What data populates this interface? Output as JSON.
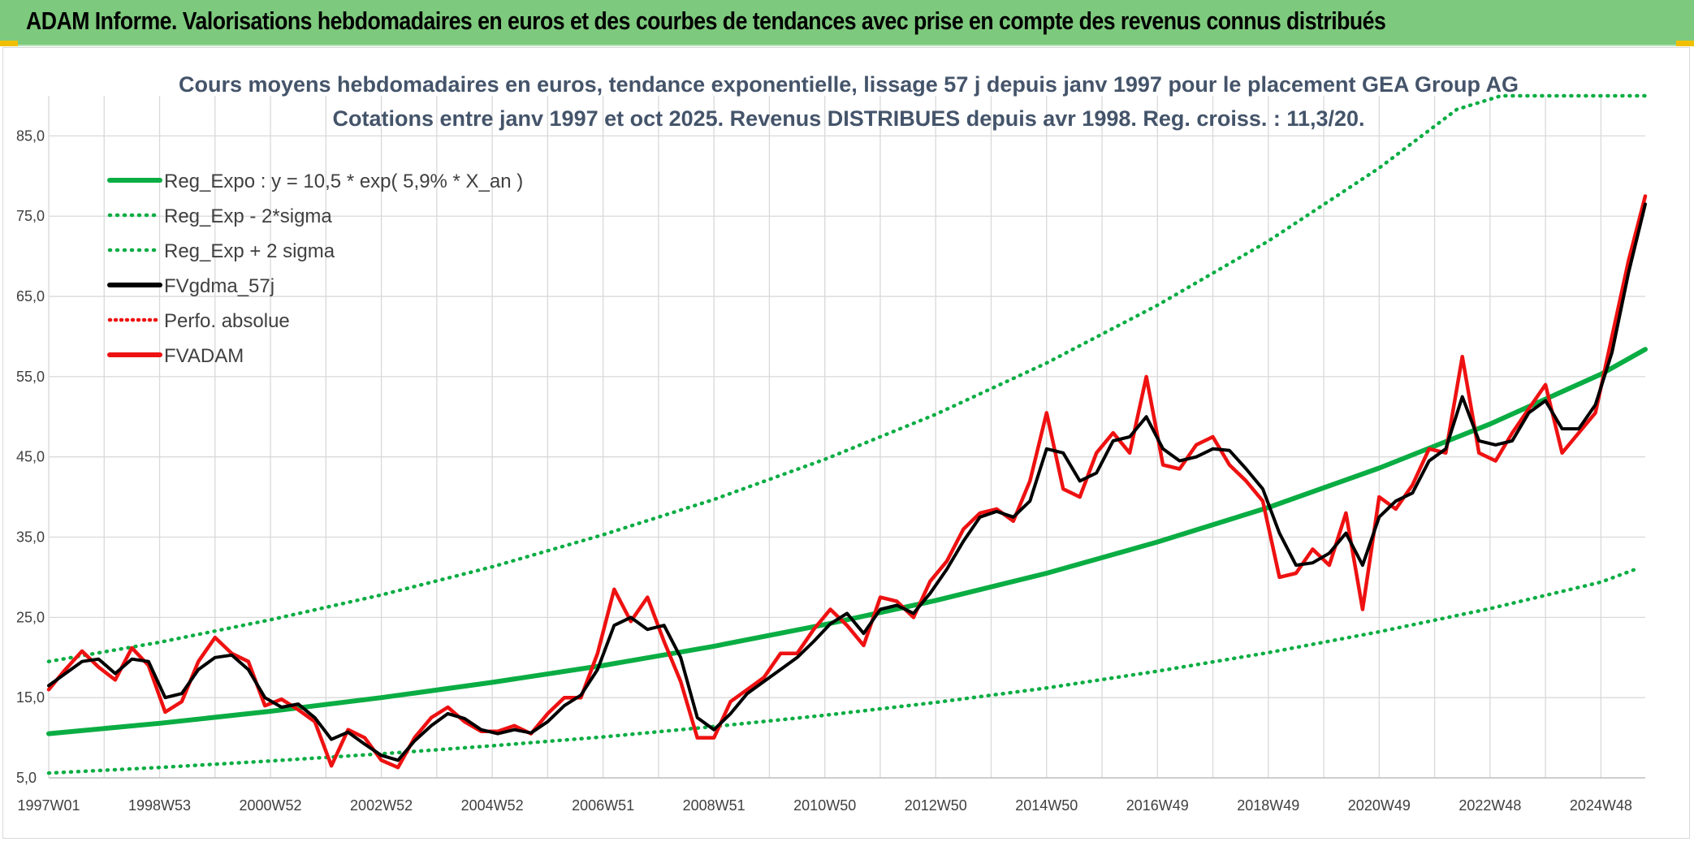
{
  "banner": {
    "title": "ADAM Informe. Valorisations hebdomadaires en euros et des courbes de tendances avec prise en compte des revenus connus distribués"
  },
  "colors": {
    "banner_bg": "#7dc97d",
    "trend": "#0aad43",
    "smooth": "#000000",
    "price": "#ee1111",
    "perf": "#ee1111",
    "grid": "#d9d9d9",
    "title": "#44546a"
  },
  "chart_data": {
    "type": "line",
    "title_lines": [
      "Cours moyens hebdomadaires en euros, tendance exponentielle, lissage 57 j depuis janv 1997 pour le placement GEA Group AG",
      "Cotations entre janv 1997 et oct 2025. Revenus DISTRIBUES depuis avr 1998. Reg. croiss. : 11,3/20."
    ],
    "xlabel": "",
    "ylabel": "",
    "x_unit": "years since 1997W01",
    "xlim": [
      0,
      28.8
    ],
    "ylim": [
      5,
      90
    ],
    "grid": true,
    "legend_position": "top-left",
    "x_ticks": [
      {
        "x": 0,
        "label": "1997W01"
      },
      {
        "x": 2,
        "label": "1998W53"
      },
      {
        "x": 4,
        "label": "2000W52"
      },
      {
        "x": 6,
        "label": "2002W52"
      },
      {
        "x": 8,
        "label": "2004W52"
      },
      {
        "x": 10,
        "label": "2006W51"
      },
      {
        "x": 12,
        "label": "2008W51"
      },
      {
        "x": 14,
        "label": "2010W50"
      },
      {
        "x": 16,
        "label": "2012W50"
      },
      {
        "x": 18,
        "label": "2014W50"
      },
      {
        "x": 20,
        "label": "2016W49"
      },
      {
        "x": 22,
        "label": "2018W49"
      },
      {
        "x": 24,
        "label": "2020W49"
      },
      {
        "x": 26,
        "label": "2022W48"
      },
      {
        "x": 28,
        "label": "2024W48"
      }
    ],
    "y_ticks": [
      {
        "y": 5,
        "label": "5,0"
      },
      {
        "y": 15,
        "label": "15,0"
      },
      {
        "y": 25,
        "label": "25,0"
      },
      {
        "y": 35,
        "label": "35,0"
      },
      {
        "y": 45,
        "label": "45,0"
      },
      {
        "y": 55,
        "label": "55,0"
      },
      {
        "y": 65,
        "label": "65,0"
      },
      {
        "y": 75,
        "label": "75,0"
      },
      {
        "y": 85,
        "label": "85,0"
      }
    ],
    "series": [
      {
        "name": "Reg_Expo : y = 10,5 * exp( 5,9% *  X_an )",
        "style": "trend",
        "x": [
          0,
          2,
          4,
          6,
          8,
          10,
          12,
          14,
          16,
          18,
          20,
          22,
          24,
          26,
          28,
          28.8
        ],
        "y": [
          10.5,
          11.8,
          13.3,
          15.0,
          16.9,
          19.0,
          21.4,
          24.1,
          27.1,
          30.5,
          34.4,
          38.7,
          43.6,
          49.1,
          55.3,
          58.4
        ]
      },
      {
        "name": "Reg_Exp - 2*sigma",
        "style": "band",
        "x": [
          0,
          2,
          4,
          6,
          8,
          10,
          12,
          14,
          16,
          18,
          20,
          22,
          24,
          26,
          28,
          28.7
        ],
        "y": [
          5.6,
          6.3,
          7.1,
          8.0,
          9.0,
          10.1,
          11.4,
          12.8,
          14.4,
          16.2,
          18.3,
          20.6,
          23.2,
          26.1,
          29.4,
          31.2
        ]
      },
      {
        "name": "Reg_Exp + 2 sigma",
        "style": "band",
        "x": [
          0,
          2,
          4,
          6,
          8,
          10,
          12,
          14,
          16,
          18,
          20,
          22,
          24,
          25.4,
          26.2,
          26.8,
          28,
          28.8
        ],
        "y": [
          19.5,
          21.9,
          24.7,
          27.8,
          31.3,
          35.3,
          39.7,
          44.7,
          50.3,
          56.7,
          63.9,
          71.9,
          81.0,
          88.3,
          90,
          90,
          90,
          90
        ]
      },
      {
        "name": "FVgdma_57j",
        "style": "smooth",
        "x": [
          0,
          0.3,
          0.6,
          0.9,
          1.2,
          1.5,
          1.8,
          2.1,
          2.4,
          2.7,
          3.0,
          3.3,
          3.6,
          3.9,
          4.2,
          4.5,
          4.8,
          5.1,
          5.4,
          5.7,
          6.0,
          6.3,
          6.6,
          6.9,
          7.2,
          7.5,
          7.8,
          8.1,
          8.4,
          8.7,
          9.0,
          9.3,
          9.6,
          9.9,
          10.2,
          10.5,
          10.8,
          11.1,
          11.4,
          11.7,
          12.0,
          12.3,
          12.6,
          12.9,
          13.2,
          13.5,
          13.8,
          14.1,
          14.4,
          14.7,
          15.0,
          15.3,
          15.6,
          15.9,
          16.2,
          16.5,
          16.8,
          17.1,
          17.4,
          17.7,
          18.0,
          18.3,
          18.6,
          18.9,
          19.2,
          19.5,
          19.8,
          20.1,
          20.4,
          20.7,
          21.0,
          21.3,
          21.6,
          21.9,
          22.2,
          22.5,
          22.8,
          23.1,
          23.4,
          23.7,
          24.0,
          24.3,
          24.6,
          24.9,
          25.2,
          25.5,
          25.8,
          26.1,
          26.4,
          26.7,
          27.0,
          27.3,
          27.6,
          27.9,
          28.2,
          28.5,
          28.8
        ],
        "y": [
          16.5,
          18.0,
          19.5,
          19.8,
          18.0,
          19.8,
          19.5,
          15.0,
          15.5,
          18.5,
          20.0,
          20.3,
          18.5,
          15.0,
          13.8,
          14.2,
          12.5,
          9.8,
          10.7,
          9.2,
          7.8,
          7.2,
          9.6,
          11.5,
          13.0,
          12.4,
          11.0,
          10.5,
          11.0,
          10.6,
          12.0,
          14.0,
          15.3,
          18.5,
          24.0,
          25.0,
          23.5,
          24.0,
          20.0,
          12.5,
          11.0,
          13.0,
          15.5,
          17.0,
          18.5,
          20.0,
          22.0,
          24.2,
          25.5,
          23.0,
          26.0,
          26.5,
          25.5,
          28.0,
          31.0,
          34.5,
          37.5,
          38.2,
          37.5,
          39.5,
          46.0,
          45.5,
          42.0,
          43.0,
          47.0,
          47.5,
          50.0,
          46.0,
          44.5,
          45.0,
          46.0,
          45.8,
          43.5,
          41.0,
          35.5,
          31.5,
          31.8,
          33.0,
          35.5,
          31.5,
          37.5,
          39.5,
          40.5,
          44.5,
          46.0,
          52.5,
          47.0,
          46.5,
          47.0,
          50.5,
          52.0,
          48.5,
          48.5,
          51.5,
          58.0,
          68.0,
          76.5
        ]
      },
      {
        "name": "Perfo. absolue",
        "style": "perf",
        "x": [],
        "y": []
      },
      {
        "name": "FVADAM",
        "style": "price",
        "x": [
          0,
          0.3,
          0.6,
          0.9,
          1.2,
          1.5,
          1.8,
          2.1,
          2.4,
          2.7,
          3.0,
          3.3,
          3.6,
          3.9,
          4.2,
          4.5,
          4.8,
          5.1,
          5.4,
          5.7,
          6.0,
          6.3,
          6.6,
          6.9,
          7.2,
          7.5,
          7.8,
          8.1,
          8.4,
          8.7,
          9.0,
          9.3,
          9.6,
          9.9,
          10.2,
          10.5,
          10.8,
          11.1,
          11.4,
          11.7,
          12.0,
          12.3,
          12.6,
          12.9,
          13.2,
          13.5,
          13.8,
          14.1,
          14.4,
          14.7,
          15.0,
          15.3,
          15.6,
          15.9,
          16.2,
          16.5,
          16.8,
          17.1,
          17.4,
          17.7,
          18.0,
          18.3,
          18.6,
          18.9,
          19.2,
          19.5,
          19.8,
          20.1,
          20.4,
          20.7,
          21.0,
          21.3,
          21.6,
          21.9,
          22.2,
          22.5,
          22.8,
          23.1,
          23.4,
          23.7,
          24.0,
          24.3,
          24.6,
          24.9,
          25.2,
          25.5,
          25.8,
          26.1,
          26.4,
          26.7,
          27.0,
          27.3,
          27.6,
          27.9,
          28.2,
          28.5,
          28.8
        ],
        "y": [
          16.0,
          18.5,
          20.8,
          18.8,
          17.2,
          21.2,
          19.0,
          13.2,
          14.5,
          19.5,
          22.5,
          20.5,
          19.5,
          14.0,
          14.8,
          13.5,
          12.0,
          6.5,
          11.0,
          10.0,
          7.2,
          6.3,
          10.0,
          12.5,
          13.8,
          12.0,
          10.8,
          10.8,
          11.5,
          10.5,
          13.0,
          15.0,
          15.0,
          20.5,
          28.5,
          24.5,
          27.5,
          22.0,
          17.0,
          10.0,
          10.0,
          14.5,
          16.0,
          17.5,
          20.5,
          20.5,
          23.5,
          26.0,
          24.0,
          21.5,
          27.5,
          27.0,
          25.0,
          29.5,
          32.0,
          36.0,
          38.0,
          38.5,
          37.0,
          42.0,
          50.5,
          41.0,
          40.0,
          45.5,
          48.0,
          45.5,
          55.0,
          44.0,
          43.5,
          46.5,
          47.5,
          44.0,
          42.0,
          39.5,
          30.0,
          30.5,
          33.5,
          31.5,
          38.0,
          26.0,
          40.0,
          38.5,
          41.5,
          46.0,
          45.5,
          57.5,
          45.5,
          44.5,
          48.0,
          51.0,
          54.0,
          45.5,
          48.0,
          50.5,
          60.0,
          69.5,
          77.5
        ]
      }
    ]
  }
}
